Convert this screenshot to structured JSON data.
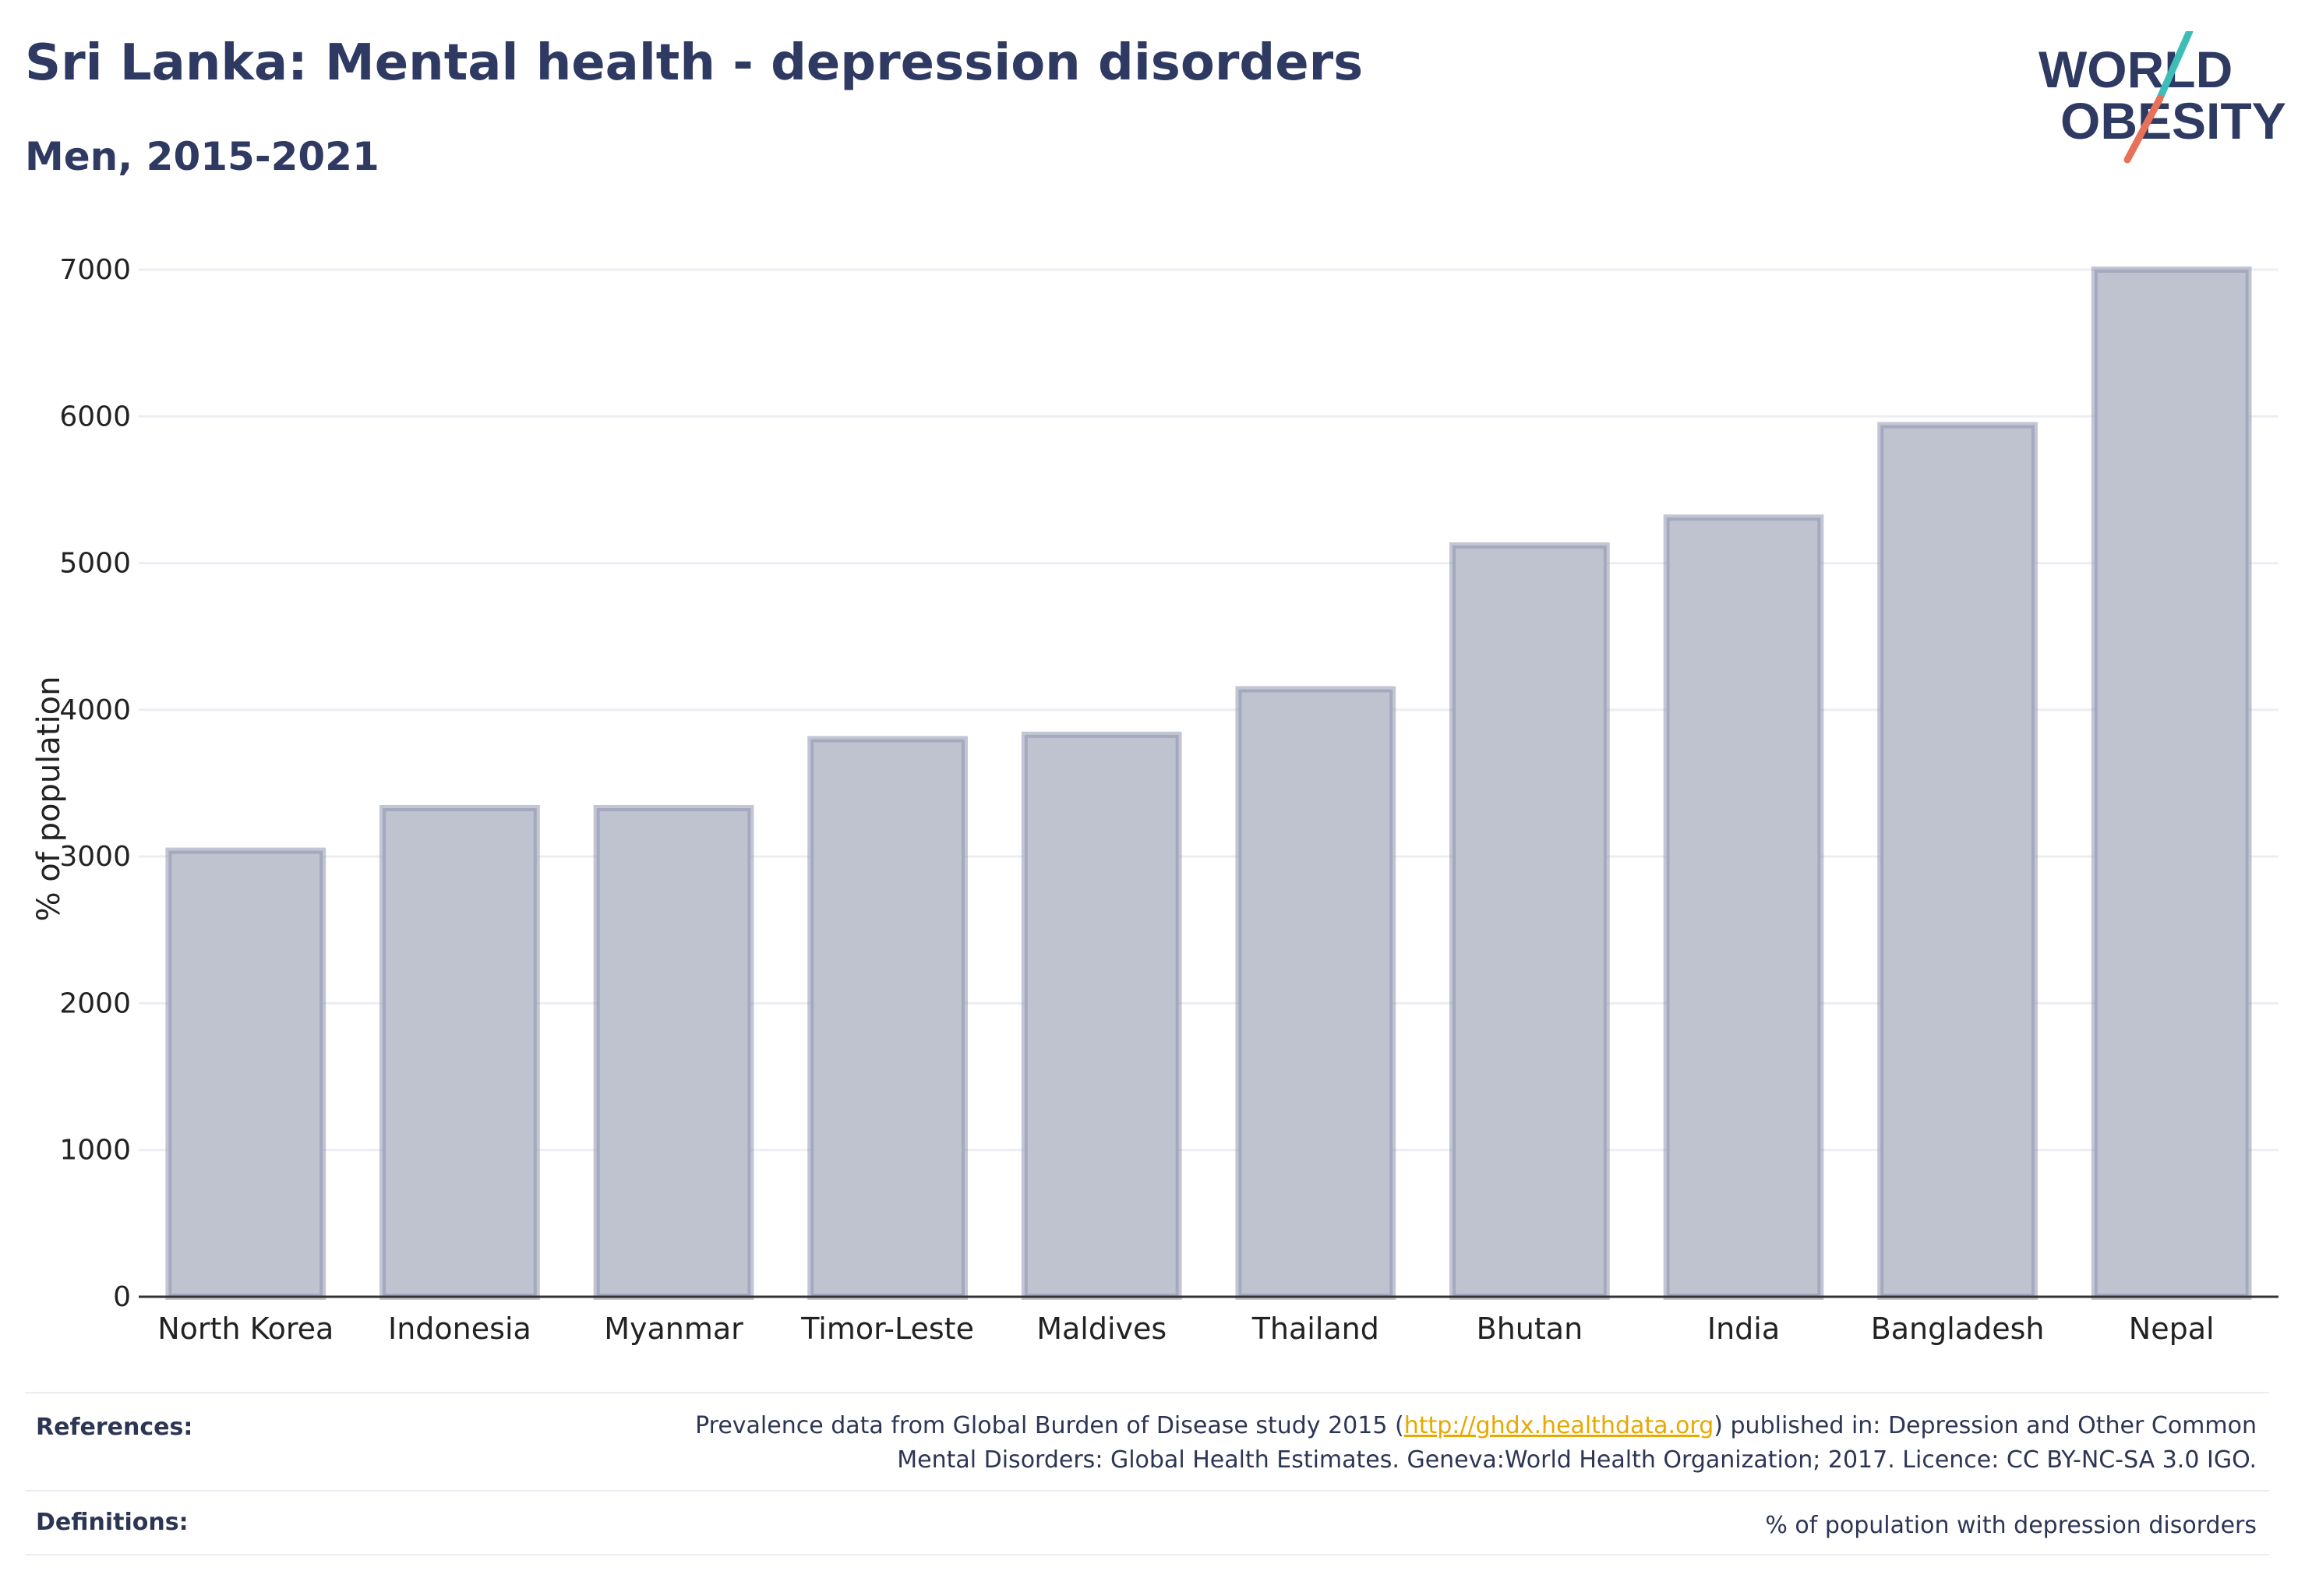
{
  "header": {
    "title": "Sri Lanka: Mental health - depression disorders",
    "subtitle": "Men, 2015-2021"
  },
  "logo": {
    "line1": "WORLD",
    "line2": "OBESITY",
    "accent_teal": "#3dbdb7",
    "accent_coral": "#e8715a",
    "text_color": "#2f3a63"
  },
  "colors": {
    "bar_fill": "#bfc2cf",
    "bar_stroke": "#9096ae",
    "grid": "#eceef3",
    "axis": "#333333"
  },
  "chart_data": {
    "type": "bar",
    "categories": [
      "North Korea",
      "Indonesia",
      "Myanmar",
      "Timor-Leste",
      "Maldives",
      "Thailand",
      "Bhutan",
      "India",
      "Bangladesh",
      "Nepal"
    ],
    "values": [
      3040,
      3330,
      3330,
      3800,
      3830,
      4140,
      5120,
      5310,
      5940,
      7000
    ],
    "title": "Sri Lanka: Mental health - depression disorders",
    "subtitle": "Men, 2015-2021",
    "xlabel": "",
    "ylabel": "% of population",
    "ylim": [
      0,
      7000
    ],
    "yticks": [
      0,
      1000,
      2000,
      3000,
      4000,
      5000,
      6000,
      7000
    ],
    "grid": true
  },
  "footer": {
    "references_label": "References:",
    "references_line1_pre": "Prevalence data from Global Burden of Disease study 2015 (",
    "references_link": "http://ghdx.healthdata.org",
    "references_line1_post": ") published in: Depression and Other Common",
    "references_line2": "Mental Disorders: Global Health Estimates. Geneva:World Health Organization; 2017. Licence: CC BY-NC-SA 3.0 IGO.",
    "definitions_label": "Definitions:",
    "definitions_text": "% of population with depression disorders"
  }
}
